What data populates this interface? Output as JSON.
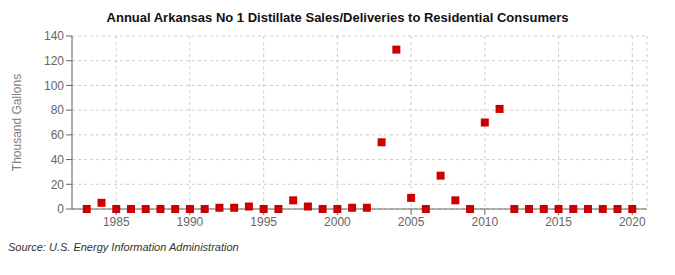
{
  "chart_data": {
    "type": "scatter",
    "title": "Annual Arkansas No 1 Distillate Sales/Deliveries to Residential Consumers",
    "y_label": "Thousand Gallons",
    "annotations": [
      "Source: U.S. Energy Information Administration"
    ],
    "x": [
      1983,
      1984,
      1985,
      1986,
      1987,
      1988,
      1989,
      1990,
      1991,
      1992,
      1993,
      1994,
      1995,
      1996,
      1997,
      1998,
      1999,
      2000,
      2001,
      2002,
      2003,
      2004,
      2005,
      2006,
      2007,
      2008,
      2009,
      2010,
      2011,
      2012,
      2013,
      2014,
      2015,
      2016,
      2017,
      2018,
      2019,
      2020
    ],
    "values": [
      0,
      5,
      0,
      0,
      0,
      0,
      0,
      0,
      0,
      1,
      1,
      2,
      0,
      0,
      7,
      2,
      0,
      0,
      1,
      1,
      54,
      129,
      9,
      0,
      27,
      7,
      0,
      70,
      81,
      0,
      0,
      0,
      0,
      0,
      0,
      0,
      0,
      0
    ],
    "color": "#cc0000",
    "marker": "square",
    "xlim": [
      1982,
      2021
    ],
    "xticks": [
      1985,
      1990,
      1995,
      2000,
      2005,
      2010,
      2015,
      2020
    ],
    "ylim": [
      0,
      140
    ],
    "yticks": [
      0,
      20,
      40,
      60,
      80,
      100,
      120,
      140
    ],
    "grid": true
  }
}
